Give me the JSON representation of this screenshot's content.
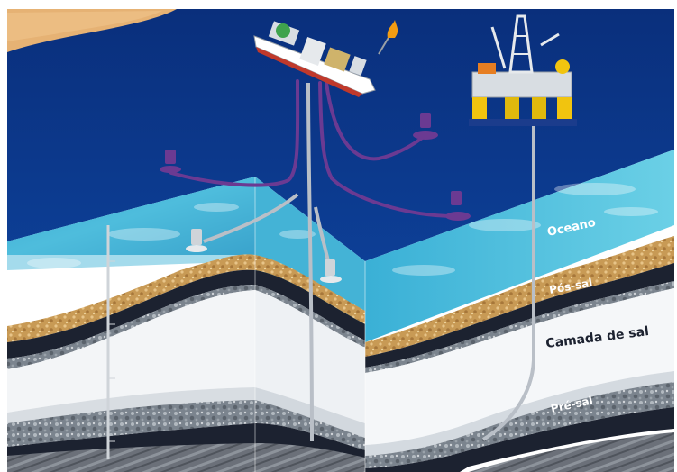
{
  "diagram": {
    "labels": {
      "ocean": "Oceano",
      "post_salt": "Pós-sal",
      "salt_layer": "Camada de sal",
      "pre_salt": "Pré-sal"
    }
  },
  "colors": {
    "sky_white": "#ffffff",
    "land": "#e9b778",
    "ocean_deep": "#0b2f7a",
    "ocean_section": "#39a9d1",
    "sediment": "#c99a52",
    "dark_rock": "#1c2230",
    "granite": "#8e969f",
    "salt": "#f4f6f8",
    "pipe": "#6a3a8f",
    "riser": "#b9bfc7"
  }
}
